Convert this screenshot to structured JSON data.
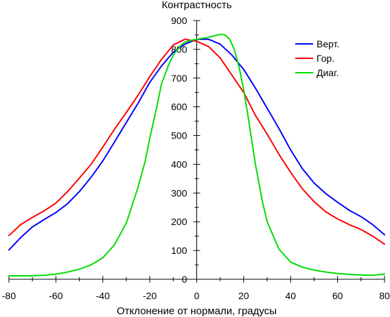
{
  "chart_data": {
    "type": "line",
    "title": "",
    "xlabel": "Отклонение от нормали, градусы",
    "ylabel": "Контрастность",
    "xlim": [
      -80,
      80
    ],
    "ylim": [
      0,
      900
    ],
    "x_ticks": [
      -80,
      -60,
      -40,
      -20,
      0,
      20,
      40,
      60,
      80
    ],
    "x_tick_labels": [
      "-80",
      "-60",
      "-40",
      "-20",
      "0",
      "20",
      "40",
      "60",
      "80"
    ],
    "y_ticks": [
      0,
      100,
      200,
      300,
      400,
      500,
      600,
      700,
      800,
      900
    ],
    "y_tick_labels": [
      "0",
      "100",
      "200",
      "300",
      "400",
      "500",
      "600",
      "700",
      "800",
      "900"
    ],
    "grid": false,
    "legend_position": "top-right",
    "series": [
      {
        "name": "Верт.",
        "color": "#0000ff",
        "x": [
          -80,
          -75,
          -70,
          -65,
          -60,
          -55,
          -50,
          -45,
          -40,
          -35,
          -30,
          -25,
          -20,
          -15,
          -10,
          -5,
          0,
          5,
          10,
          15,
          20,
          25,
          30,
          35,
          40,
          45,
          50,
          55,
          60,
          65,
          70,
          75,
          80
        ],
        "y": [
          102,
          145,
          182,
          208,
          232,
          263,
          305,
          355,
          412,
          478,
          545,
          612,
          685,
          742,
          790,
          818,
          835,
          835,
          818,
          780,
          730,
          665,
          595,
          525,
          450,
          385,
          335,
          298,
          268,
          240,
          218,
          190,
          155
        ]
      },
      {
        "name": "Гор.",
        "color": "#ff0000",
        "x": [
          -80,
          -75,
          -70,
          -65,
          -60,
          -55,
          -50,
          -45,
          -40,
          -35,
          -30,
          -25,
          -20,
          -15,
          -10,
          -5,
          0,
          5,
          10,
          15,
          20,
          25,
          30,
          35,
          40,
          45,
          50,
          55,
          60,
          65,
          70,
          75,
          80
        ],
        "y": [
          152,
          190,
          215,
          238,
          265,
          305,
          352,
          400,
          460,
          522,
          580,
          640,
          705,
          765,
          815,
          835,
          828,
          810,
          770,
          710,
          650,
          570,
          505,
          435,
          372,
          315,
          270,
          235,
          210,
          190,
          173,
          150,
          122
        ]
      },
      {
        "name": "Диаг.",
        "color": "#00dd00",
        "x": [
          -80,
          -75,
          -70,
          -65,
          -60,
          -55,
          -50,
          -45,
          -40,
          -35,
          -30,
          -25,
          -22,
          -20,
          -17,
          -15,
          -12,
          -10,
          -7,
          -5,
          -2,
          0,
          5,
          8,
          10,
          12,
          14,
          16,
          18,
          20,
          22,
          25,
          28,
          30,
          35,
          40,
          45,
          50,
          55,
          60,
          65,
          70,
          75,
          80
        ],
        "y": [
          12,
          12,
          12,
          14,
          18,
          25,
          35,
          50,
          75,
          120,
          195,
          320,
          410,
          490,
          600,
          680,
          745,
          780,
          812,
          825,
          832,
          835,
          842,
          848,
          852,
          850,
          835,
          800,
          740,
          660,
          560,
          400,
          270,
          200,
          105,
          60,
          42,
          32,
          25,
          20,
          17,
          15,
          14,
          18
        ]
      }
    ]
  }
}
